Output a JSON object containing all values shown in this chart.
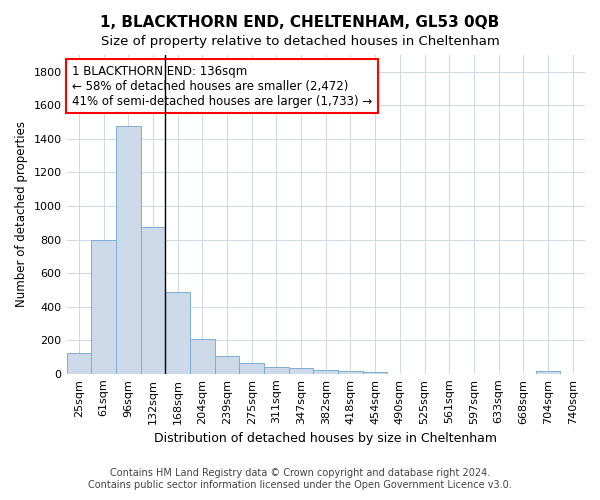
{
  "title": "1, BLACKTHORN END, CHELTENHAM, GL53 0QB",
  "subtitle": "Size of property relative to detached houses in Cheltenham",
  "xlabel": "Distribution of detached houses by size in Cheltenham",
  "ylabel": "Number of detached properties",
  "footnote1": "Contains HM Land Registry data © Crown copyright and database right 2024.",
  "footnote2": "Contains public sector information licensed under the Open Government Licence v3.0.",
  "categories": [
    "25sqm",
    "61sqm",
    "96sqm",
    "132sqm",
    "168sqm",
    "204sqm",
    "239sqm",
    "275sqm",
    "311sqm",
    "347sqm",
    "382sqm",
    "418sqm",
    "454sqm",
    "490sqm",
    "525sqm",
    "561sqm",
    "597sqm",
    "633sqm",
    "668sqm",
    "704sqm",
    "740sqm"
  ],
  "values": [
    125,
    800,
    1475,
    875,
    490,
    205,
    105,
    65,
    42,
    35,
    25,
    18,
    8,
    0,
    0,
    0,
    0,
    0,
    0,
    15,
    0
  ],
  "bar_fill_color": "#ccd9e8",
  "bar_edge_color": "#7bafd4",
  "vline_x": 3.5,
  "annotation_line1": "1 BLACKTHORN END: 136sqm",
  "annotation_line2": "← 58% of detached houses are smaller (2,472)",
  "annotation_line3": "41% of semi-detached houses are larger (1,733) →",
  "annotation_box_edge_color": "red",
  "ylim": [
    0,
    1900
  ],
  "yticks": [
    0,
    200,
    400,
    600,
    800,
    1000,
    1200,
    1400,
    1600,
    1800
  ],
  "background_color": "#ffffff",
  "fig_background_color": "#ffffff",
  "grid_color": "#d0d8e8",
  "title_fontsize": 11,
  "subtitle_fontsize": 9.5,
  "xlabel_fontsize": 9,
  "ylabel_fontsize": 8.5,
  "tick_fontsize": 8,
  "annotation_fontsize": 8.5,
  "footnote_fontsize": 7
}
